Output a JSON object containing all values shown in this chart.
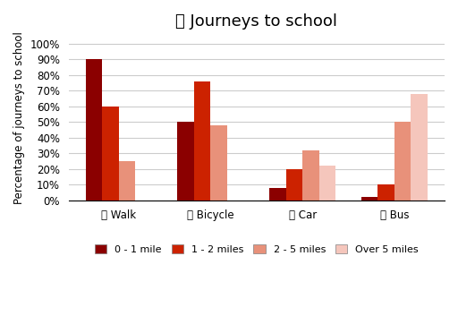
{
  "title": "Journeys to school",
  "categories": [
    "Walk",
    "Bicycle",
    "Car",
    "Bus"
  ],
  "series": {
    "0 - 1 mile": [
      90,
      50,
      8,
      2
    ],
    "1 - 2 miles": [
      60,
      76,
      20,
      10
    ],
    "2 - 5 miles": [
      25,
      48,
      32,
      50
    ],
    "Over 5 miles": [
      0,
      0,
      22,
      68
    ]
  },
  "colors": {
    "0 - 1 mile": "#8B0000",
    "1 - 2 miles": "#CC2200",
    "2 - 5 miles": "#E8917A",
    "Over 5 miles": "#F5C6BC"
  },
  "ylabel": "Percentage of journeys to school",
  "yticks": [
    0,
    10,
    20,
    30,
    40,
    50,
    60,
    70,
    80,
    90,
    100
  ],
  "ylim": [
    0,
    105
  ],
  "background_color": "#ffffff",
  "grid_color": "#cccccc",
  "legend_labels": [
    "0 - 1 mile",
    "1 - 2 miles",
    "2 - 5 miles",
    "Over 5 miles"
  ]
}
